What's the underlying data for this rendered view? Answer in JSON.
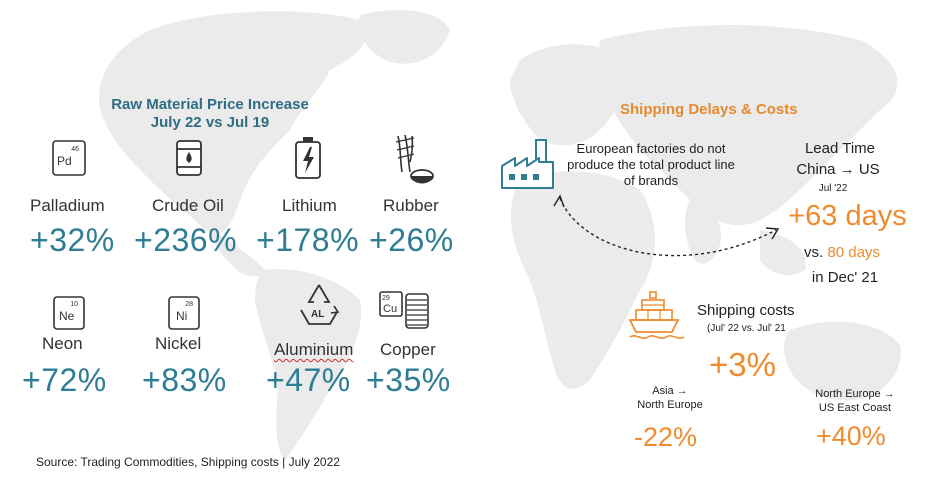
{
  "raw_materials": {
    "title_line1": "Raw Material Price Increase",
    "title_line2": "July 22 vs Jul 19",
    "items": [
      {
        "name": "Palladium",
        "value": "+32%",
        "icon": "palladium-element-icon",
        "symbol": "Pd",
        "number": "46"
      },
      {
        "name": "Crude Oil",
        "value": "+236%",
        "icon": "oil-barrel-icon"
      },
      {
        "name": "Lithium",
        "value": "+178%",
        "icon": "battery-lightning-icon"
      },
      {
        "name": "Rubber",
        "value": "+26%",
        "icon": "rubber-tap-icon"
      },
      {
        "name": "Neon",
        "value": "+72%",
        "icon": "neon-element-icon",
        "symbol": "Ne",
        "number": "10"
      },
      {
        "name": "Nickel",
        "value": "+83%",
        "icon": "nickel-element-icon",
        "symbol": "Ni",
        "number": "28"
      },
      {
        "name": "Aluminium",
        "value": "+47%",
        "icon": "aluminium-recycle-icon",
        "symbol": "AL"
      },
      {
        "name": "Copper",
        "value": "+35%",
        "icon": "copper-coil-icon",
        "symbol": "Cu",
        "number": "29"
      }
    ]
  },
  "shipping": {
    "title": "Shipping Delays & Costs",
    "factory_note": "European factories do not produce the total product line of brands",
    "factory_icon": "factory-icon",
    "lead_time_label1": "Lead Time",
    "lead_time_label2": "China → US",
    "lead_time_period": "Jul '22",
    "lead_time_value": "+63 days",
    "lead_time_vs_prefix": "vs.",
    "lead_time_vs_value": "80 days",
    "lead_time_vs_suffix": "in Dec' 21",
    "cost_label": "Shipping costs",
    "cost_period": "(Jul' 22 vs. Jul' 21",
    "cost_value": "+3%",
    "ship_icon": "cargo-ship-icon",
    "route1_line1": "Asia →",
    "route1_line2": "North Europe",
    "route1_value": "-22%",
    "route2_line1": "North Europe →",
    "route2_line2": "US East Coast",
    "route2_value": "+40%"
  },
  "source": "Source: Trading Commodities, Shipping costs | July 2022",
  "colors": {
    "blue": "#2e7d94",
    "orange": "#ef8b2c",
    "map": "#ececec"
  }
}
